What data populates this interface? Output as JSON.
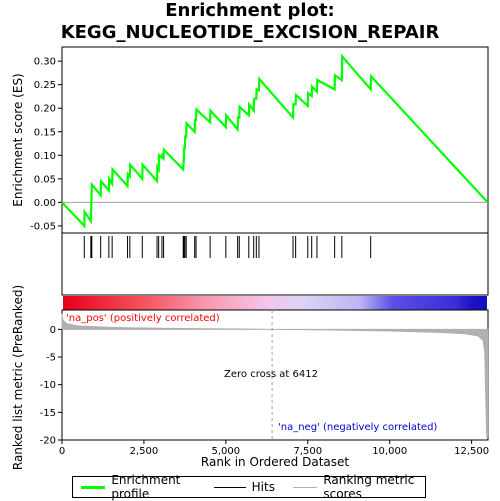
{
  "title_line1": "Enrichment plot:",
  "title_line2": "KEGG_NUCLEOTIDE_EXCISION_REPAIR",
  "colors": {
    "es_line": "#00ff00",
    "hits": "#000000",
    "metric": "#b0b0b0",
    "pos_label": "#ff0000",
    "neg_label": "#0000cc",
    "zero_line": "#a0a0a0"
  },
  "chart_data": [
    {
      "type": "line",
      "panel": "enrichment-profile",
      "ylabel": "Enrichment score (ES)",
      "xlim": [
        0,
        13000
      ],
      "ylim": [
        -0.065,
        0.33
      ],
      "yticks": [
        "-0.05",
        "0.00",
        "0.05",
        "0.10",
        "0.15",
        "0.20",
        "0.25",
        "0.30"
      ],
      "grid": false,
      "series": [
        {
          "name": "Enrichment profile",
          "x": [
            0,
            680,
            690,
            880,
            890,
            900,
            910,
            1180,
            1190,
            1430,
            1440,
            1530,
            1540,
            2000,
            2010,
            2070,
            2080,
            2450,
            2460,
            2900,
            2910,
            2950,
            2960,
            3050,
            3060,
            3100,
            3110,
            3700,
            3710,
            3720,
            3730,
            3750,
            3760,
            3790,
            3800,
            4050,
            4060,
            4090,
            4100,
            4520,
            4530,
            5000,
            5010,
            5360,
            5370,
            5410,
            5420,
            5700,
            5710,
            5850,
            5860,
            5930,
            5940,
            6010,
            6020,
            7050,
            7060,
            7130,
            7140,
            7500,
            7510,
            7620,
            7630,
            7780,
            7790,
            8320,
            8330,
            8540,
            8550,
            9420,
            9430,
            12990
          ],
          "values": [
            0.0,
            -0.05,
            -0.02,
            -0.04,
            -0.015,
            0.01,
            0.038,
            0.015,
            0.045,
            0.025,
            0.05,
            0.04,
            0.07,
            0.035,
            0.06,
            0.055,
            0.08,
            0.05,
            0.08,
            0.045,
            0.075,
            0.07,
            0.1,
            0.095,
            0.1,
            0.095,
            0.112,
            0.07,
            0.09,
            0.09,
            0.115,
            0.115,
            0.14,
            0.14,
            0.168,
            0.15,
            0.175,
            0.175,
            0.197,
            0.17,
            0.195,
            0.16,
            0.185,
            0.155,
            0.18,
            0.18,
            0.203,
            0.185,
            0.208,
            0.195,
            0.22,
            0.22,
            0.24,
            0.238,
            0.262,
            0.18,
            0.208,
            0.208,
            0.228,
            0.205,
            0.232,
            0.226,
            0.246,
            0.235,
            0.26,
            0.24,
            0.27,
            0.26,
            0.31,
            0.24,
            0.268,
            0.0
          ]
        }
      ]
    },
    {
      "type": "scatter",
      "panel": "hits",
      "series": [
        {
          "name": "Hits",
          "x": [
            680,
            880,
            900,
            910,
            1180,
            1430,
            1530,
            2000,
            2070,
            2450,
            2900,
            2950,
            3050,
            3100,
            3700,
            3720,
            3750,
            3790,
            4050,
            4090,
            4520,
            5000,
            5360,
            5410,
            5700,
            5850,
            5930,
            6010,
            7050,
            7130,
            7500,
            7620,
            7780,
            8320,
            8540,
            9420
          ]
        }
      ]
    },
    {
      "type": "area",
      "panel": "ranked-list-metric",
      "xlabel": "Rank in Ordered Dataset",
      "ylabel": "Ranked list metric (PreRanked)",
      "xlim": [
        0,
        13000
      ],
      "ylim": [
        -20,
        3.5
      ],
      "xticks": [
        "0",
        "2,500",
        "5,000",
        "7,500",
        "10,000",
        "12,500"
      ],
      "yticks": [
        "-20",
        "-15",
        "-10",
        "-5",
        "0"
      ],
      "series": [
        {
          "name": "Ranking metric scores",
          "x": [
            0,
            30,
            150,
            500,
            1500,
            3000,
            4500,
            6000,
            6412,
            8000,
            10000,
            11500,
            12300,
            12700,
            12850,
            12900,
            12960,
            12990
          ],
          "values": [
            2.8,
            1.6,
            1.0,
            0.6,
            0.35,
            0.2,
            0.1,
            0.03,
            0.0,
            -0.1,
            -0.3,
            -0.55,
            -0.8,
            -1.2,
            -2.0,
            -4.0,
            -19.5,
            -19.5
          ]
        }
      ],
      "annotations": {
        "zero_cross": "Zero cross at 6412",
        "zero_cross_x": 6412,
        "pos_label": "'na_pos' (positively correlated)",
        "neg_label": "'na_neg' (negatively correlated)"
      }
    }
  ],
  "legend": {
    "es_label": "Enrichment profile",
    "hits_label": "Hits",
    "metric_label": "Ranking metric scores"
  }
}
